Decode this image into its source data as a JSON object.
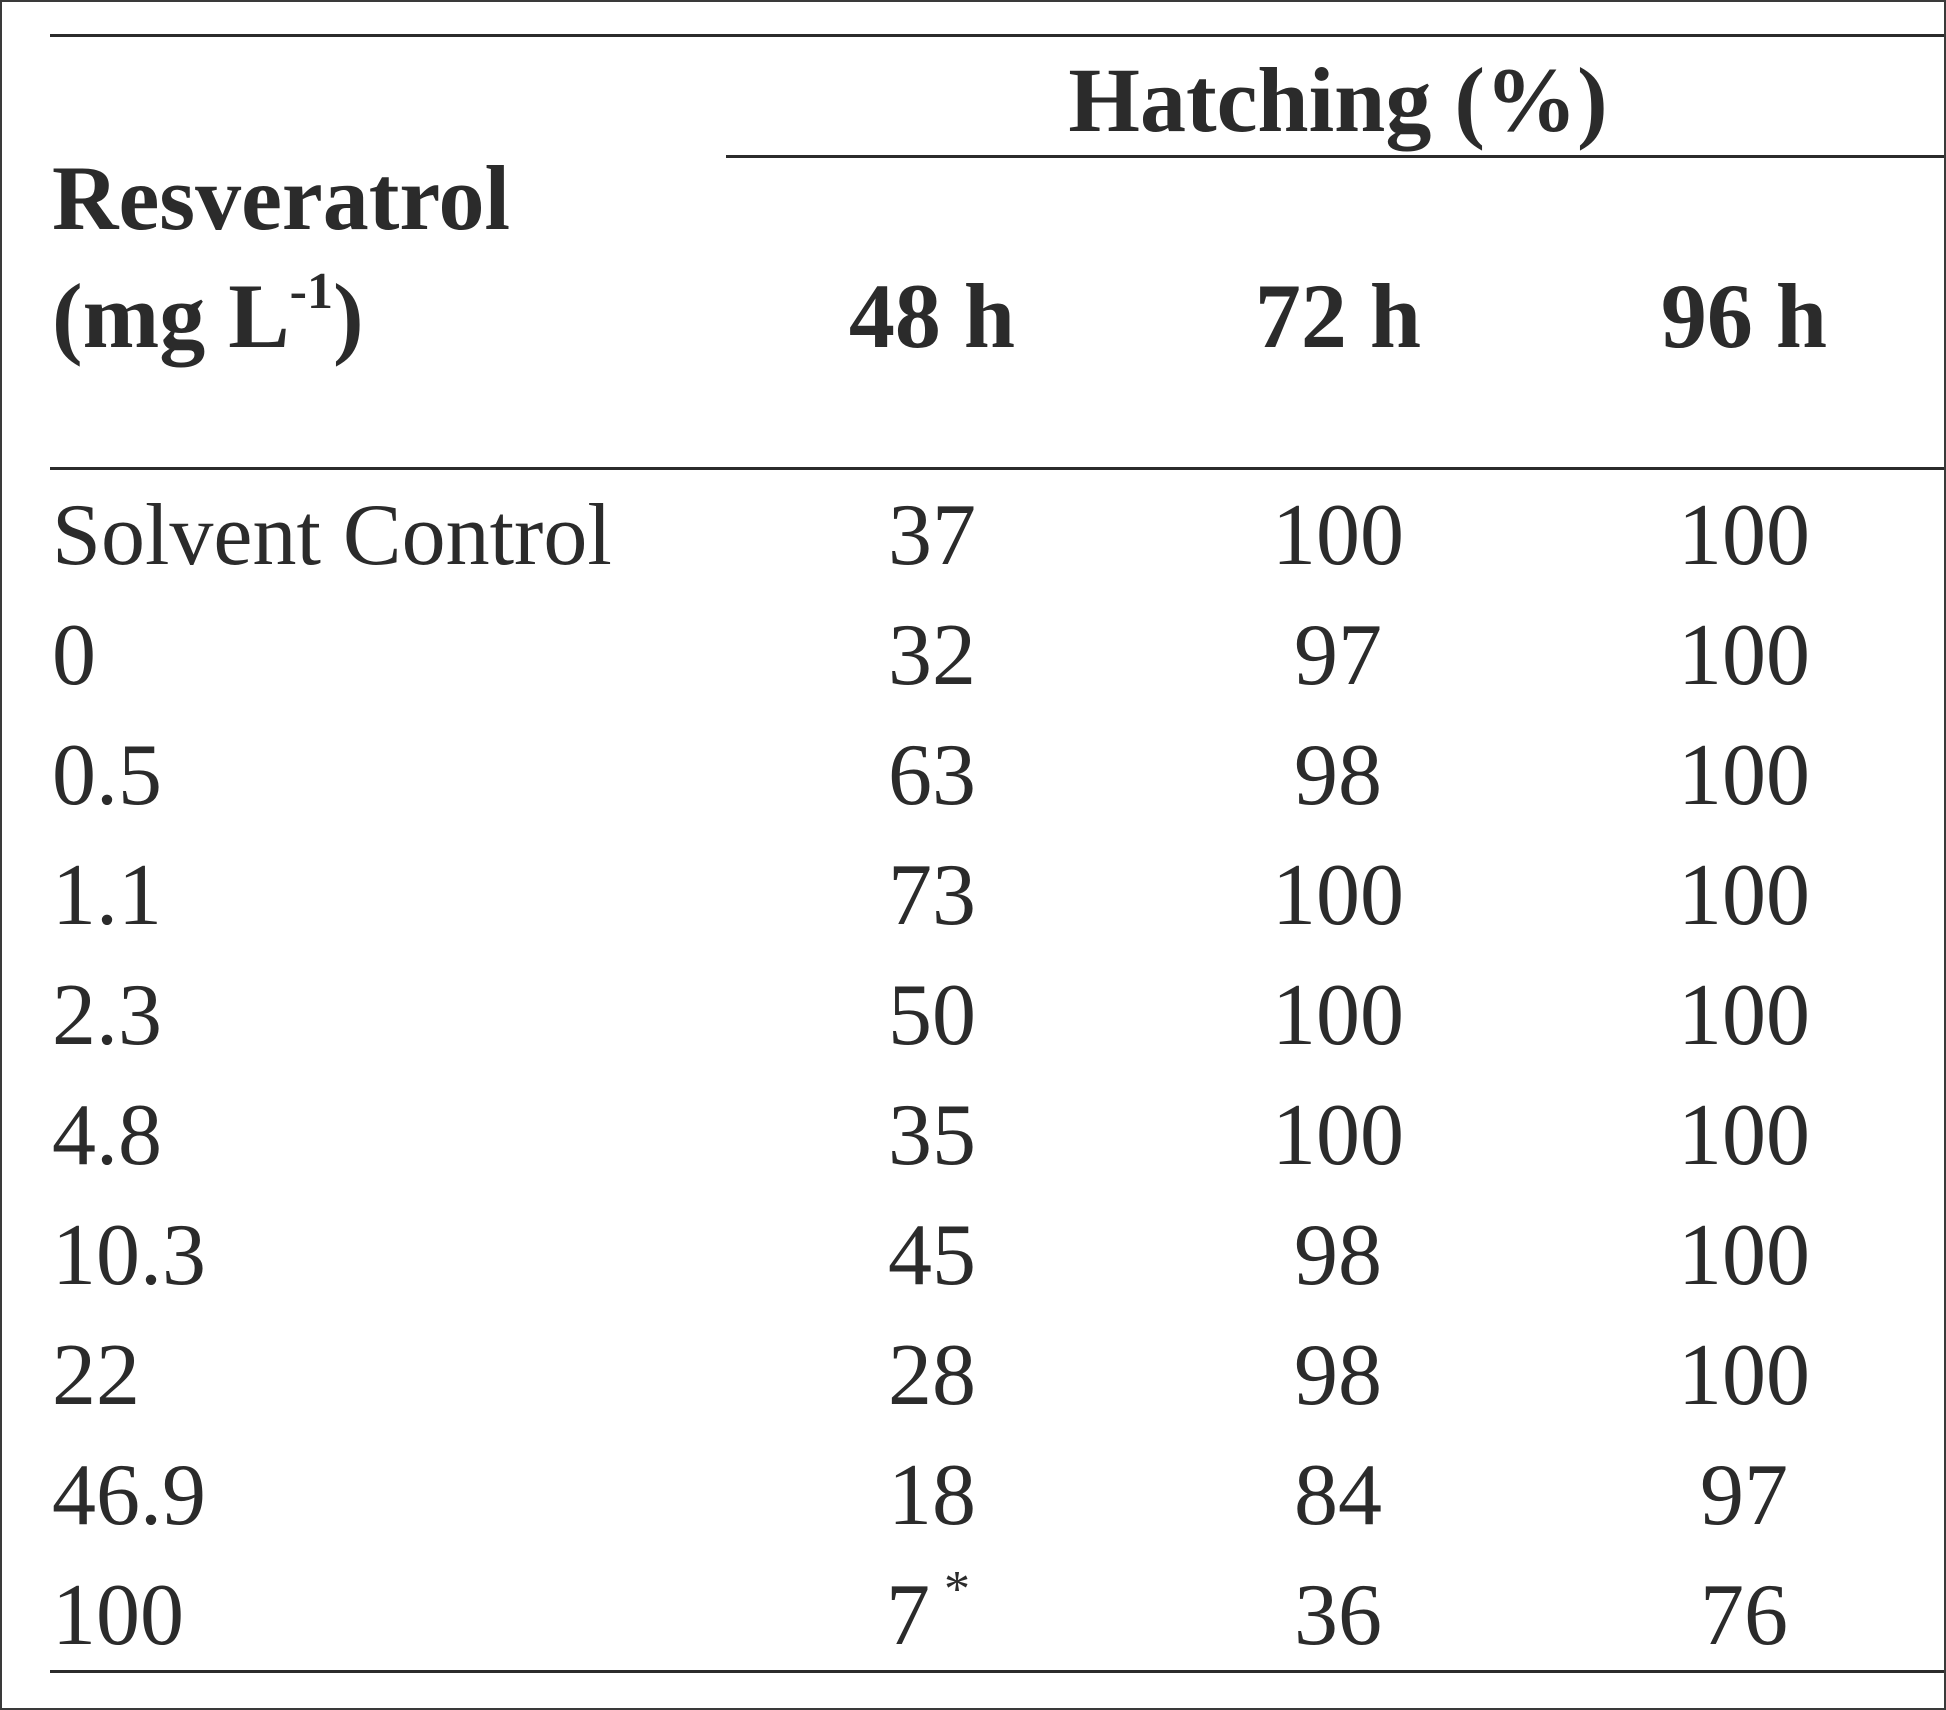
{
  "table": {
    "group_header": "Hatching (%)",
    "row_header": {
      "line1": "Resveratrol",
      "line2_prefix": "(mg L",
      "line2_superscript": "-1",
      "line2_suffix": ")"
    },
    "columns": [
      "48 h",
      "72 h",
      "96 h"
    ],
    "rows": [
      {
        "label": "Solvent Control",
        "values": [
          "37",
          "100",
          "100"
        ]
      },
      {
        "label": "0",
        "values": [
          "32",
          "97",
          "100"
        ]
      },
      {
        "label": "0.5",
        "values": [
          "63",
          "98",
          "100"
        ]
      },
      {
        "label": "1.1",
        "values": [
          "73",
          "100",
          "100"
        ]
      },
      {
        "label": "2.3",
        "values": [
          "50",
          "100",
          "100"
        ]
      },
      {
        "label": "4.8",
        "values": [
          "35",
          "100",
          "100"
        ]
      },
      {
        "label": "10.3",
        "values": [
          "45",
          "98",
          "100"
        ]
      },
      {
        "label": "22",
        "values": [
          "28",
          "98",
          "100"
        ]
      },
      {
        "label": "46.9",
        "values": [
          "18",
          "84",
          "97"
        ]
      },
      {
        "label": "100",
        "values": [
          "7",
          "36",
          "76"
        ],
        "mark_48h": "*"
      }
    ]
  }
}
